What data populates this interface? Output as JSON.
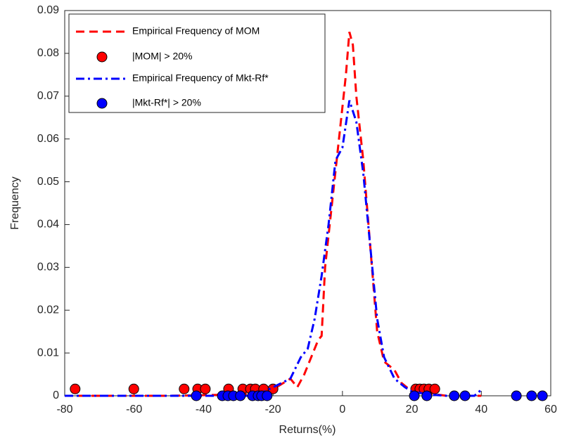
{
  "chart_data": {
    "type": "line",
    "xlabel": "Returns(%)",
    "ylabel": "Frequency",
    "xlim": [
      -80,
      60
    ],
    "xticks": [
      -80,
      -60,
      -40,
      -20,
      0,
      20,
      40,
      60
    ],
    "ylim": [
      0,
      0.09
    ],
    "yticks": [
      0,
      0.01,
      0.02,
      0.03,
      0.04,
      0.05,
      0.06,
      0.07,
      0.08,
      0.09
    ],
    "legend": "upper left",
    "series": [
      {
        "name": "Empirical Frequency of MOM",
        "color": "#ff0000",
        "kind": "line",
        "style": "dashed",
        "x": [
          -80,
          -50,
          -30,
          -25,
          -20,
          -17,
          -15,
          -13,
          -11,
          -9,
          -7,
          -6,
          -5,
          -3,
          -1,
          1,
          2,
          3,
          4,
          6,
          8,
          10,
          12,
          15,
          17,
          20,
          25,
          30,
          40
        ],
        "values": [
          0,
          0,
          0.0003,
          0.0005,
          0.0015,
          0.003,
          0.004,
          0.002,
          0.005,
          0.009,
          0.013,
          0.014,
          0.03,
          0.045,
          0.06,
          0.075,
          0.085,
          0.082,
          0.07,
          0.055,
          0.035,
          0.015,
          0.008,
          0.006,
          0.003,
          0.001,
          0.0005,
          0,
          0
        ]
      },
      {
        "name": "|MOM| > 20%",
        "color": "#ff0000",
        "kind": "scatter",
        "x": [
          -77,
          -60.1,
          -45.6,
          -41.7,
          -39.5,
          -32.8,
          -28.7,
          -26.5,
          -25.1,
          -22.7,
          -20,
          21.1,
          22.3,
          23.5,
          24.9,
          26.6
        ],
        "values": [
          0.0016,
          0.0016,
          0.0016,
          0.0016,
          0.0016,
          0.0016,
          0.0016,
          0.0016,
          0.0016,
          0.0016,
          0.0016,
          0.0016,
          0.0016,
          0.0016,
          0.0016,
          0.0016
        ]
      },
      {
        "name": "Empirical Frequency of Mkt-Rf*",
        "color": "#0000ff",
        "kind": "line",
        "style": "dashdot",
        "x": [
          -80,
          -40,
          -25,
          -20,
          -15,
          -12,
          -10,
          -8,
          -6,
          -4,
          -2,
          0,
          2,
          4,
          6,
          8,
          10,
          12,
          15,
          18,
          20,
          25,
          30,
          38,
          40
        ],
        "values": [
          0,
          0,
          0,
          0.002,
          0.004,
          0.009,
          0.011,
          0.018,
          0.028,
          0.04,
          0.055,
          0.058,
          0.069,
          0.064,
          0.052,
          0.035,
          0.018,
          0.009,
          0.004,
          0.002,
          0.001,
          0.0003,
          0,
          0,
          0.0014
        ]
      },
      {
        "name": "|Mkt-Rf*| > 20%",
        "color": "#0000ff",
        "kind": "scatter",
        "x": [
          -42.1,
          -34.6,
          -33,
          -31.4,
          -29.4,
          -25.9,
          -24.3,
          -23.3,
          -21.7,
          20.7,
          24.3,
          32.2,
          35.3,
          50.1,
          54.5,
          57.6
        ],
        "values": [
          0,
          0,
          0,
          0,
          0,
          0,
          0,
          0,
          0,
          0,
          0,
          0,
          0,
          0,
          0,
          0
        ]
      }
    ]
  }
}
